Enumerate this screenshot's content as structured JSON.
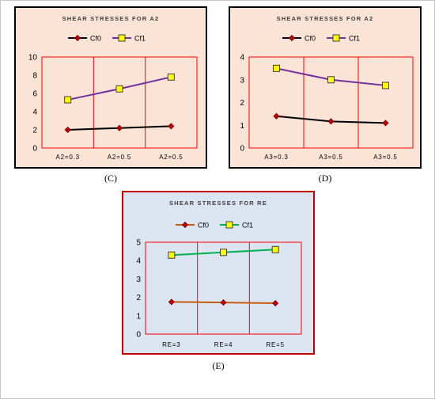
{
  "charts": [
    {
      "caption": "(C)",
      "background": "#fbe3d6",
      "border_color": "#000000",
      "chart_data": {
        "type": "line",
        "title": "SHEAR STRESSES FOR A2",
        "categories": [
          "A2=0.3",
          "A2=0.5",
          "A2=0.5"
        ],
        "series": [
          {
            "name": "Cf0",
            "values": [
              2.0,
              2.2,
              2.4
            ],
            "color": "#000000",
            "marker": "diamond",
            "marker_color": "#c00000"
          },
          {
            "name": "Cf1",
            "values": [
              5.3,
              6.5,
              7.8
            ],
            "color": "#7030a0",
            "marker": "square",
            "marker_color": "#ffff00"
          }
        ],
        "ylim": [
          0,
          10
        ],
        "yticks": [
          "0",
          "2",
          "4",
          "6",
          "8",
          "10"
        ],
        "grid": "vertical category dividers",
        "legend": "top"
      }
    },
    {
      "caption": "(D)",
      "background": "#fbe3d6",
      "border_color": "#000000",
      "chart_data": {
        "type": "line",
        "title": "SHEAR STRESSES FOR A2",
        "categories": [
          "A3=0.3",
          "A3=0.5",
          "A3=0.5"
        ],
        "series": [
          {
            "name": "Cf0",
            "values": [
              1.4,
              1.17,
              1.1
            ],
            "color": "#000000",
            "marker": "diamond",
            "marker_color": "#c00000"
          },
          {
            "name": "Cf1",
            "values": [
              3.5,
              3.0,
              2.75
            ],
            "color": "#7030a0",
            "marker": "square",
            "marker_color": "#ffff00"
          }
        ],
        "ylim": [
          0,
          4
        ],
        "yticks": [
          "0",
          "1",
          "2",
          "3",
          "4"
        ],
        "grid": "vertical category dividers",
        "legend": "top"
      }
    },
    {
      "caption": "(E)",
      "background": "#dbe5f1",
      "border_color": "#c00000",
      "chart_data": {
        "type": "line",
        "title": "SHEAR STRESSES FOR RE",
        "categories": [
          "RE=3",
          "RE=4",
          "RE=5"
        ],
        "series": [
          {
            "name": "Cf0",
            "values": [
              1.75,
              1.72,
              1.68
            ],
            "color": "#c55a11",
            "marker": "diamond",
            "marker_color": "#c00000"
          },
          {
            "name": "Cf1",
            "values": [
              4.3,
              4.45,
              4.6
            ],
            "color": "#00b050",
            "marker": "square",
            "marker_color": "#ffff00"
          }
        ],
        "ylim": [
          0,
          5
        ],
        "yticks": [
          "0",
          "1",
          "2",
          "3",
          "4",
          "5"
        ],
        "grid": "vertical category dividers",
        "legend": "top"
      }
    }
  ]
}
